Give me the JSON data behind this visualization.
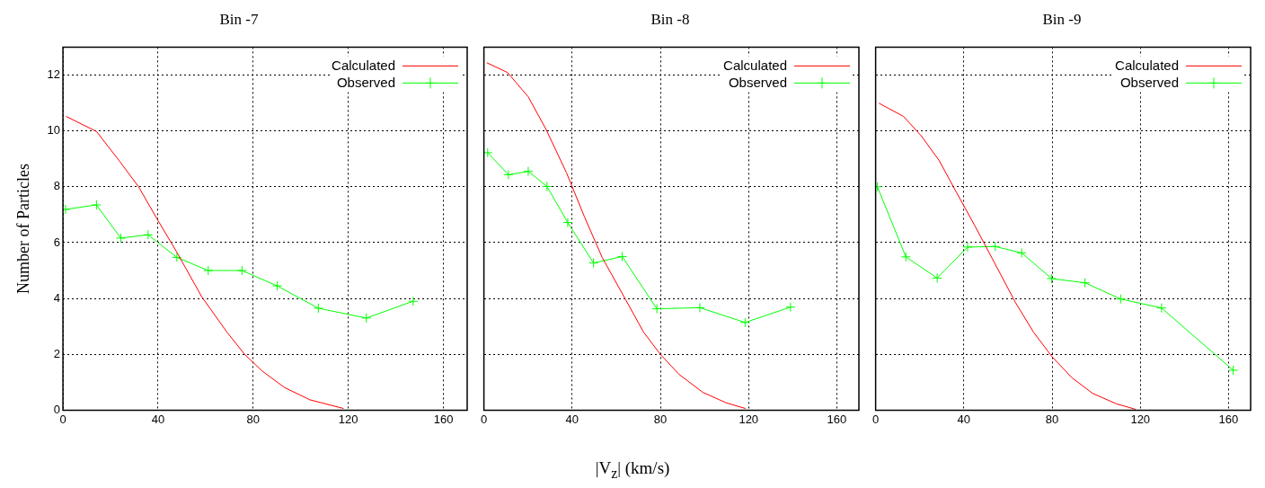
{
  "chart_data": [
    {
      "type": "line",
      "title": "Bin -7",
      "ylabel": "Number of Particles",
      "xlim": [
        0,
        170
      ],
      "ylim": [
        0,
        13
      ],
      "xticks": [
        0,
        40,
        80,
        120,
        160
      ],
      "yticks": [
        0,
        2,
        4,
        6,
        8,
        10,
        12
      ],
      "grid": true,
      "legend": "top right",
      "series": [
        {
          "name": "Calculated",
          "color": "#ff0000",
          "marker": "none",
          "x": [
            1.3,
            14.1,
            23.5,
            31.8,
            39.5,
            47.6,
            58.3,
            69,
            76.4,
            83.8,
            93.2,
            103.9,
            118
          ],
          "values": [
            10.52,
            9.98,
            8.95,
            8.0,
            6.86,
            5.7,
            4.07,
            2.79,
            2.0,
            1.4,
            0.81,
            0.37,
            0.06
          ]
        },
        {
          "name": "Observed",
          "color": "#00ff00",
          "marker": "cross",
          "x": [
            1.1,
            14.1,
            24.3,
            35.8,
            47.9,
            61.1,
            75.3,
            90.1,
            107.4,
            127.6,
            147.3
          ],
          "values": [
            7.19,
            7.35,
            6.16,
            6.28,
            5.47,
            5.0,
            5.0,
            4.45,
            3.65,
            3.3,
            3.9
          ]
        }
      ]
    },
    {
      "type": "line",
      "title": "Bin -8",
      "xlabel": "|V$_{z}$| (km/s)",
      "xlim": [
        0,
        170
      ],
      "ylim": [
        0,
        13
      ],
      "xticks": [
        0,
        40,
        80,
        120,
        160
      ],
      "yticks": [
        0,
        2,
        4,
        6,
        8,
        10,
        12
      ],
      "tick_labels": "x",
      "grid": true,
      "legend": "top right",
      "series": [
        {
          "name": "Calculated",
          "color": "#ff0000",
          "marker": "none",
          "x": [
            1.3,
            10.7,
            20.1,
            28.2,
            37.5,
            45.6,
            53.6,
            64.3,
            72.4,
            80,
            88.5,
            99.2,
            109.9,
            118.6
          ],
          "values": [
            12.44,
            12.09,
            11.22,
            10.05,
            8.49,
            6.92,
            5.47,
            3.95,
            2.79,
            2.0,
            1.28,
            0.64,
            0.26,
            0.06
          ]
        },
        {
          "name": "Observed",
          "color": "#00ff00",
          "marker": "cross",
          "x": [
            1.7,
            11.1,
            20.1,
            28.6,
            38,
            49.7,
            62.7,
            78.4,
            97.9,
            118.4,
            139
          ],
          "values": [
            9.22,
            8.43,
            8.55,
            8.01,
            6.72,
            5.27,
            5.5,
            3.63,
            3.67,
            3.14,
            3.69
          ]
        }
      ]
    },
    {
      "type": "line",
      "title": "Bin -9",
      "xlim": [
        0,
        170
      ],
      "ylim": [
        0,
        13
      ],
      "xticks": [
        0,
        40,
        80,
        120,
        160
      ],
      "yticks": [
        0,
        2,
        4,
        6,
        8,
        10,
        12
      ],
      "tick_labels": "x",
      "grid": true,
      "legend": "top right",
      "series": [
        {
          "name": "Calculated",
          "color": "#ff0000",
          "marker": "none",
          "x": [
            1.5,
            12.6,
            20.6,
            28.7,
            36.7,
            44.8,
            54.2,
            63.5,
            71.6,
            79.9,
            89,
            98.4,
            109.1,
            117.8
          ],
          "values": [
            10.99,
            10.52,
            9.83,
            8.95,
            7.79,
            6.63,
            5.23,
            3.84,
            2.79,
            1.92,
            1.16,
            0.6,
            0.23,
            0.03
          ]
        },
        {
          "name": "Observed",
          "color": "#00ff00",
          "marker": "cross",
          "x": [
            0.8,
            13.7,
            27.9,
            41.7,
            54.2,
            66.2,
            79.8,
            94.9,
            111.1,
            129.6,
            162.1
          ],
          "values": [
            8.0,
            5.49,
            4.73,
            5.84,
            5.86,
            5.63,
            4.71,
            4.56,
            3.98,
            3.66,
            1.43
          ]
        }
      ]
    }
  ]
}
